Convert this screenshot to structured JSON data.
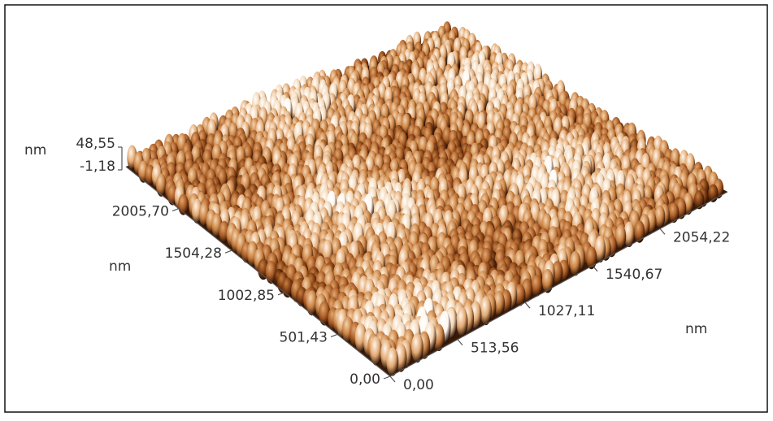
{
  "chart_data": {
    "type": "surface3d",
    "x_label": "nm",
    "y_label": "nm",
    "z_label": "nm",
    "xlim": [
      0,
      2567.78
    ],
    "xticks": [
      {
        "value": 0,
        "label": "0,00"
      },
      {
        "value": 513.56,
        "label": "513,56"
      },
      {
        "value": 1027.11,
        "label": "1027,11"
      },
      {
        "value": 1540.67,
        "label": "1540,67"
      },
      {
        "value": 2054.22,
        "label": "2054,22"
      }
    ],
    "ylim": [
      0,
      2507.13
    ],
    "yticks": [
      {
        "value": 0,
        "label": "0,00"
      },
      {
        "value": 501.43,
        "label": "501,43"
      },
      {
        "value": 1002.85,
        "label": "1002,85"
      },
      {
        "value": 1504.28,
        "label": "1504,28"
      },
      {
        "value": 2005.7,
        "label": "2005,70"
      }
    ],
    "zlim": [
      -1.18,
      48.55
    ],
    "zticks": [
      {
        "value": -1.18,
        "label": "-1,18"
      },
      {
        "value": 48.55,
        "label": "48,55"
      }
    ]
  }
}
